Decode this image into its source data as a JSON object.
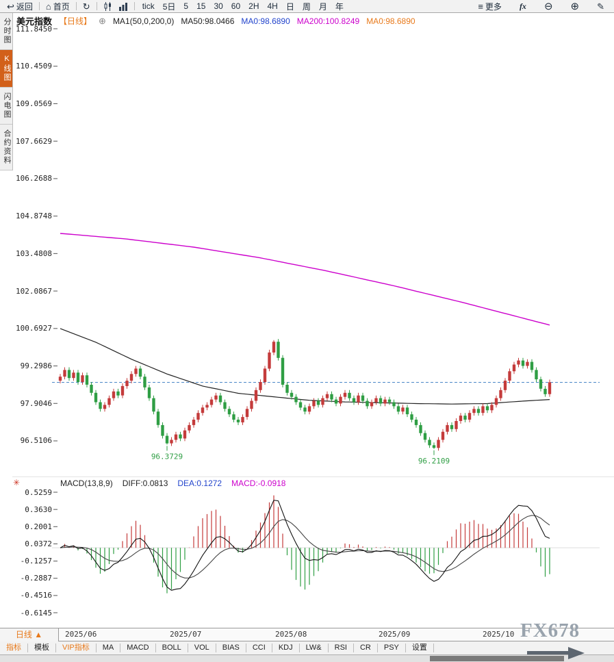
{
  "toolbar": {
    "back_label": "返回",
    "home_label": "首页",
    "timeframes": [
      "tick",
      "5日",
      "5",
      "15",
      "30",
      "60",
      "2H",
      "4H",
      "日",
      "周",
      "月",
      "年"
    ],
    "more_label": "更多",
    "fx_label": "fx"
  },
  "sidebar": {
    "tabs": [
      {
        "label": "分时图",
        "active": false
      },
      {
        "label": "K线图",
        "active": true
      },
      {
        "label": "闪电图",
        "active": false
      },
      {
        "label": "合约资料",
        "active": false
      }
    ]
  },
  "chart_header": {
    "symbol": "美元指数",
    "period": "【日线】",
    "ma_settings": "MA1(50,0,200,0)",
    "ma50_label": "MA50:98.0466",
    "ma0_blue_label": "MA0:98.6890",
    "ma200_label": "MA200:100.8249",
    "ma0_orange_label": "MA0:98.6890"
  },
  "macd_header": {
    "title": "MACD(13,8,9)",
    "diff_label": "DIFF:0.0813",
    "dea_label": "DEA:0.1272",
    "macd_label": "MACD:-0.0918"
  },
  "bottom": {
    "period_tab": "日线 ▲",
    "dates": [
      "2025/06",
      "2025/07",
      "2025/08",
      "2025/09",
      "2025/10"
    ],
    "watermark": "FX678",
    "tabs": [
      {
        "label": "指标",
        "accent": true
      },
      {
        "label": "模板",
        "accent": false
      },
      {
        "label": "VIP指标",
        "accent": true
      },
      {
        "label": "MA",
        "accent": false
      },
      {
        "label": "MACD",
        "accent": false
      },
      {
        "label": "BOLL",
        "accent": false
      },
      {
        "label": "VOL",
        "accent": false
      },
      {
        "label": "BIAS",
        "accent": false
      },
      {
        "label": "CCI",
        "accent": false
      },
      {
        "label": "KDJ",
        "accent": false
      },
      {
        "label": "LW&",
        "accent": false
      },
      {
        "label": "RSI",
        "accent": false
      },
      {
        "label": "CR",
        "accent": false
      },
      {
        "label": "PSY",
        "accent": false
      },
      {
        "label": "设置",
        "accent": false
      }
    ]
  },
  "chart_data": {
    "type": "candlestick",
    "title": "美元指数 日线 (US Dollar Index, daily)",
    "y_axis_main": [
      "111.8450",
      "110.4509",
      "109.0569",
      "107.6629",
      "106.2688",
      "104.8748",
      "103.4808",
      "102.0867",
      "100.6927",
      "99.2986",
      "97.9046",
      "96.5106"
    ],
    "y_axis_macd": [
      "0.5259",
      "0.3630",
      "0.2001",
      "0.0372",
      "-0.1257",
      "-0.2887",
      "-0.4516",
      "-0.6145"
    ],
    "x_axis": [
      "2025/06",
      "2025/07",
      "2025/08",
      "2025/09",
      "2025/10"
    ],
    "first_open": 98.75,
    "closes": [
      98.9,
      99.15,
      98.85,
      99.05,
      98.7,
      98.95,
      98.6,
      98.3,
      97.95,
      97.7,
      97.85,
      98.1,
      98.35,
      98.2,
      98.55,
      98.75,
      99.0,
      99.2,
      98.9,
      98.5,
      98.1,
      97.6,
      97.1,
      96.7,
      96.42,
      96.55,
      96.75,
      96.6,
      96.9,
      97.1,
      97.3,
      97.55,
      97.75,
      97.85,
      98.05,
      98.2,
      97.95,
      97.7,
      97.5,
      97.3,
      97.2,
      97.4,
      97.7,
      98.0,
      98.4,
      98.7,
      99.2,
      99.8,
      100.2,
      99.6,
      98.6,
      98.3,
      98.15,
      97.95,
      97.75,
      97.6,
      97.8,
      98.0,
      97.85,
      98.1,
      98.25,
      98.05,
      97.9,
      98.15,
      98.3,
      98.1,
      97.95,
      98.2,
      98.0,
      97.8,
      97.95,
      98.1,
      97.9,
      98.05,
      97.95,
      97.8,
      97.6,
      97.75,
      97.5,
      97.3,
      97.1,
      96.8,
      96.55,
      96.35,
      96.25,
      96.55,
      96.85,
      97.1,
      96.95,
      97.25,
      97.45,
      97.3,
      97.55,
      97.7,
      97.55,
      97.8,
      97.65,
      97.85,
      98.1,
      98.4,
      98.75,
      99.1,
      99.35,
      99.5,
      99.3,
      99.45,
      99.15,
      98.8,
      98.45,
      98.25,
      98.69
    ],
    "wick": 0.1,
    "low_overrides": {
      "24": 96.3729,
      "84": 96.2109
    },
    "high_overrides": {
      "48": 100.26
    },
    "annotations": [
      {
        "index": 24,
        "text": "96.3729"
      },
      {
        "index": 84,
        "text": "96.2109"
      }
    ],
    "current_price": 98.689,
    "ma50_points": [
      [
        0,
        100.69
      ],
      [
        8,
        100.18
      ],
      [
        16,
        99.55
      ],
      [
        24,
        99.0
      ],
      [
        32,
        98.55
      ],
      [
        40,
        98.28
      ],
      [
        48,
        98.15
      ],
      [
        56,
        98.02
      ],
      [
        64,
        97.96
      ],
      [
        72,
        97.93
      ],
      [
        80,
        97.9
      ],
      [
        88,
        97.88
      ],
      [
        96,
        97.9
      ],
      [
        104,
        97.99
      ],
      [
        110,
        98.05
      ]
    ],
    "ma200_points": [
      [
        0,
        104.23
      ],
      [
        15,
        104.02
      ],
      [
        30,
        103.72
      ],
      [
        45,
        103.32
      ],
      [
        60,
        102.83
      ],
      [
        75,
        102.28
      ],
      [
        90,
        101.68
      ],
      [
        100,
        101.25
      ],
      [
        110,
        100.82
      ]
    ],
    "macd_params": {
      "fast": 8,
      "slow": 13,
      "signal": 9,
      "bar_mult": 2
    },
    "macd_peak_target": 0.45,
    "colors": {
      "up": "#c43b3b",
      "down": "#2f9e44",
      "ma50": "#222222",
      "ma200": "#cc00cc",
      "price_line": "#4a86c8",
      "diff_line": "#111111",
      "dea_line": "#444444",
      "annotation": "#2f9e44",
      "accent_orange": "#e8791a",
      "blue_text": "#2244cc",
      "magenta_text": "#cc00cc"
    }
  }
}
